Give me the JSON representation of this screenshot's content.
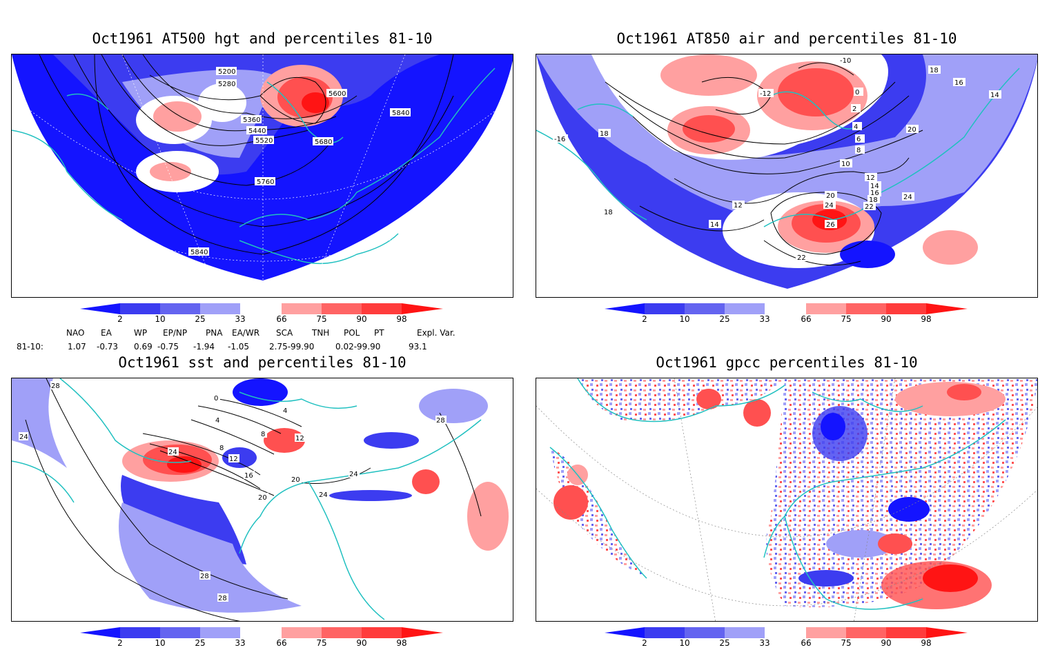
{
  "panels": [
    {
      "id": "hgt500",
      "title": "Oct1961 AT500 hgt and percentiles 81-10",
      "contour_labels": [
        "5200",
        "5280",
        "5360",
        "5440",
        "5520",
        "5600",
        "5680",
        "5760",
        "5840",
        "5840"
      ]
    },
    {
      "id": "air850",
      "title": "Oct1961 AT850 air and percentiles 81-10",
      "contour_labels": [
        "-10",
        "-12",
        "0",
        "2",
        "4",
        "6",
        "8",
        "10",
        "12",
        "14",
        "16",
        "18",
        "18",
        "18",
        "20",
        "20",
        "22",
        "22",
        "24",
        "26",
        "12",
        "14",
        "-16",
        "14",
        "16",
        "18",
        "24"
      ]
    },
    {
      "id": "sst",
      "title": "Oct1961 sst and percentiles 81-10",
      "contour_labels": [
        "28",
        "24",
        "0",
        "4",
        "4",
        "8",
        "8",
        "12",
        "12",
        "16",
        "20",
        "20",
        "24",
        "24",
        "24",
        "28",
        "28",
        "28"
      ]
    },
    {
      "id": "gpcc",
      "title": "Oct1961 gpcc percentiles 81-10",
      "contour_labels": []
    }
  ],
  "colorbar": {
    "labels": [
      "2",
      "10",
      "25",
      "33",
      "66",
      "75",
      "90",
      "98"
    ],
    "colors": [
      "#1414ff",
      "#3c3cf0",
      "#6464f0",
      "#a0a0f8",
      "#ffffff",
      "#ffa0a0",
      "#ff6464",
      "#ff3c3c",
      "#ff1414"
    ]
  },
  "indices": {
    "headers": [
      "NAO",
      "EA",
      "WP",
      "EP/NP",
      "PNA",
      "EA/WR",
      "SCA",
      "TNH",
      "POL",
      "PT",
      "Expl. Var."
    ],
    "row_label": "81-10:",
    "values": [
      "1.07",
      "-0.73",
      "0.69",
      "-0.75",
      "-1.94",
      "-1.05",
      "2.75-99.90",
      "0.02-99.90",
      "93.1"
    ]
  },
  "colors": {
    "coast": "#20c0c0",
    "contour": "#000000",
    "blue_dark": "#1414ff",
    "blue_mid": "#4646f0",
    "blue_light": "#a0a0f8",
    "red_light": "#ffa0a0",
    "red_mid": "#ff5050",
    "red_dark": "#ff1414"
  }
}
